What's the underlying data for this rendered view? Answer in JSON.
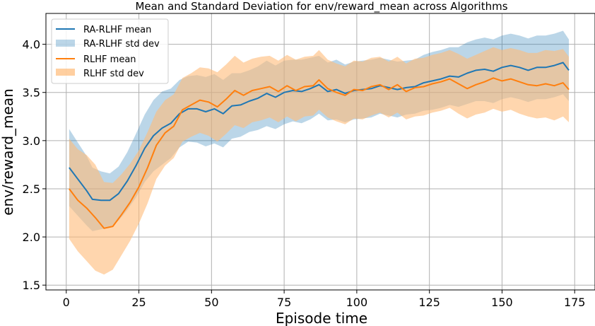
{
  "chart_data": {
    "type": "line",
    "title": "Mean and Standard Deviation for env/reward_mean across Algorithms",
    "xlabel": "Episode time",
    "ylabel": "env/reward_mean",
    "xlim": [
      -7,
      182
    ],
    "ylim": [
      1.45,
      4.32
    ],
    "x_ticks": [
      0,
      25,
      50,
      75,
      100,
      125,
      150,
      175
    ],
    "y_ticks": [
      1.5,
      2.0,
      2.5,
      3.0,
      3.5,
      4.0
    ],
    "x_tick_labels": [
      "0",
      "25",
      "50",
      "75",
      "100",
      "125",
      "150",
      "175"
    ],
    "y_tick_labels": [
      "1.5",
      "2.0",
      "2.5",
      "3.0",
      "3.5",
      "4.0"
    ],
    "grid": true,
    "legend_position": "top-left",
    "series": [
      {
        "name": "RA-RLHF mean",
        "band_name": "RA-RLHF std dev",
        "color": "#1f77b4",
        "band_color": "#1f77b4",
        "points": [
          [
            1,
            2.72
          ],
          [
            4,
            2.6
          ],
          [
            7,
            2.48
          ],
          [
            9,
            2.39
          ],
          [
            12,
            2.38
          ],
          [
            15,
            2.38
          ],
          [
            18,
            2.45
          ],
          [
            21,
            2.58
          ],
          [
            24,
            2.74
          ],
          [
            27,
            2.92
          ],
          [
            30,
            3.05
          ],
          [
            33,
            3.13
          ],
          [
            36,
            3.18
          ],
          [
            39,
            3.28
          ],
          [
            42,
            3.33
          ],
          [
            45,
            3.33
          ],
          [
            48,
            3.3
          ],
          [
            51,
            3.33
          ],
          [
            54,
            3.28
          ],
          [
            57,
            3.36
          ],
          [
            60,
            3.37
          ],
          [
            63,
            3.41
          ],
          [
            66,
            3.44
          ],
          [
            69,
            3.49
          ],
          [
            72,
            3.45
          ],
          [
            75,
            3.5
          ],
          [
            78,
            3.52
          ],
          [
            81,
            3.51
          ],
          [
            84,
            3.54
          ],
          [
            87,
            3.58
          ],
          [
            90,
            3.51
          ],
          [
            93,
            3.53
          ],
          [
            96,
            3.49
          ],
          [
            99,
            3.52
          ],
          [
            102,
            3.53
          ],
          [
            105,
            3.54
          ],
          [
            108,
            3.57
          ],
          [
            111,
            3.55
          ],
          [
            114,
            3.53
          ],
          [
            117,
            3.55
          ],
          [
            120,
            3.56
          ],
          [
            123,
            3.6
          ],
          [
            126,
            3.62
          ],
          [
            129,
            3.64
          ],
          [
            132,
            3.67
          ],
          [
            135,
            3.66
          ],
          [
            138,
            3.7
          ],
          [
            141,
            3.73
          ],
          [
            144,
            3.74
          ],
          [
            147,
            3.72
          ],
          [
            150,
            3.76
          ],
          [
            153,
            3.78
          ],
          [
            156,
            3.76
          ],
          [
            159,
            3.73
          ],
          [
            162,
            3.76
          ],
          [
            165,
            3.76
          ],
          [
            168,
            3.78
          ],
          [
            171,
            3.81
          ],
          [
            173,
            3.73
          ]
        ],
        "std": [
          0.4,
          0.38,
          0.36,
          0.33,
          0.3,
          0.28,
          0.28,
          0.3,
          0.33,
          0.35,
          0.37,
          0.38,
          0.36,
          0.35,
          0.34,
          0.35,
          0.36,
          0.36,
          0.35,
          0.34,
          0.33,
          0.32,
          0.33,
          0.34,
          0.33,
          0.33,
          0.32,
          0.33,
          0.32,
          0.3,
          0.3,
          0.31,
          0.3,
          0.3,
          0.3,
          0.3,
          0.29,
          0.29,
          0.29,
          0.28,
          0.28,
          0.29,
          0.3,
          0.3,
          0.3,
          0.31,
          0.32,
          0.32,
          0.33,
          0.33,
          0.33,
          0.33,
          0.33,
          0.33,
          0.33,
          0.33,
          0.33,
          0.33,
          0.32
        ]
      },
      {
        "name": "RLHF mean",
        "band_name": "RLHF std dev",
        "color": "#ff7f0e",
        "band_color": "#ffbb78",
        "points": [
          [
            1,
            2.5
          ],
          [
            4,
            2.38
          ],
          [
            7,
            2.3
          ],
          [
            10,
            2.2
          ],
          [
            13,
            2.09
          ],
          [
            16,
            2.11
          ],
          [
            19,
            2.23
          ],
          [
            22,
            2.36
          ],
          [
            25,
            2.52
          ],
          [
            28,
            2.72
          ],
          [
            31,
            2.95
          ],
          [
            34,
            3.08
          ],
          [
            37,
            3.15
          ],
          [
            40,
            3.32
          ],
          [
            43,
            3.37
          ],
          [
            46,
            3.42
          ],
          [
            49,
            3.4
          ],
          [
            52,
            3.35
          ],
          [
            55,
            3.43
          ],
          [
            58,
            3.52
          ],
          [
            61,
            3.47
          ],
          [
            64,
            3.52
          ],
          [
            67,
            3.54
          ],
          [
            70,
            3.56
          ],
          [
            73,
            3.51
          ],
          [
            76,
            3.57
          ],
          [
            79,
            3.52
          ],
          [
            82,
            3.56
          ],
          [
            85,
            3.57
          ],
          [
            87,
            3.63
          ],
          [
            90,
            3.54
          ],
          [
            93,
            3.5
          ],
          [
            96,
            3.47
          ],
          [
            99,
            3.53
          ],
          [
            102,
            3.52
          ],
          [
            105,
            3.56
          ],
          [
            108,
            3.58
          ],
          [
            111,
            3.53
          ],
          [
            114,
            3.58
          ],
          [
            117,
            3.51
          ],
          [
            120,
            3.55
          ],
          [
            123,
            3.56
          ],
          [
            126,
            3.59
          ],
          [
            129,
            3.61
          ],
          [
            132,
            3.64
          ],
          [
            135,
            3.59
          ],
          [
            138,
            3.54
          ],
          [
            141,
            3.58
          ],
          [
            144,
            3.61
          ],
          [
            147,
            3.65
          ],
          [
            150,
            3.62
          ],
          [
            153,
            3.64
          ],
          [
            156,
            3.61
          ],
          [
            159,
            3.58
          ],
          [
            162,
            3.57
          ],
          [
            165,
            3.59
          ],
          [
            168,
            3.57
          ],
          [
            171,
            3.6
          ],
          [
            173,
            3.53
          ]
        ],
        "std": [
          0.52,
          0.53,
          0.55,
          0.55,
          0.48,
          0.45,
          0.42,
          0.4,
          0.38,
          0.37,
          0.35,
          0.34,
          0.33,
          0.33,
          0.33,
          0.34,
          0.35,
          0.36,
          0.36,
          0.36,
          0.34,
          0.33,
          0.33,
          0.32,
          0.32,
          0.32,
          0.32,
          0.31,
          0.31,
          0.31,
          0.3,
          0.3,
          0.3,
          0.3,
          0.3,
          0.3,
          0.29,
          0.29,
          0.29,
          0.29,
          0.3,
          0.3,
          0.3,
          0.3,
          0.3,
          0.31,
          0.31,
          0.31,
          0.32,
          0.32,
          0.32,
          0.32,
          0.33,
          0.33,
          0.34,
          0.35,
          0.36,
          0.35,
          0.34
        ]
      }
    ]
  }
}
